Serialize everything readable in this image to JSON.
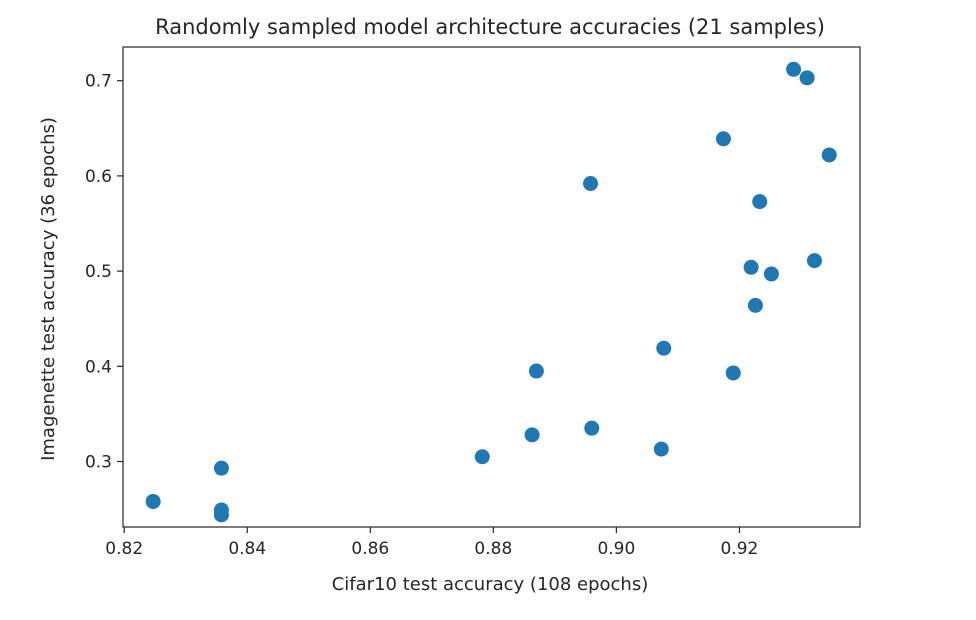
{
  "chart_data": {
    "type": "scatter",
    "title": "Randomly sampled model architecture accuracies (21 samples)",
    "xlabel": "Cifar10 test accuracy (108 epochs)",
    "ylabel": "Imagenette test accuracy (36 epochs)",
    "xlim": [
      0.8198,
      0.9396
    ],
    "ylim": [
      0.2312,
      0.7354
    ],
    "xticks": [
      0.82,
      0.84,
      0.86,
      0.88,
      0.9,
      0.92
    ],
    "xtick_labels": [
      "0.82",
      "0.84",
      "0.86",
      "0.88",
      "0.90",
      "0.92"
    ],
    "yticks": [
      0.3,
      0.4,
      0.5,
      0.6,
      0.7
    ],
    "ytick_labels": [
      "0.3",
      "0.4",
      "0.5",
      "0.6",
      "0.7"
    ],
    "grid": false,
    "marker_color": "#1f77b4",
    "points": [
      {
        "x": 0.8247,
        "y": 0.258
      },
      {
        "x": 0.8358,
        "y": 0.293
      },
      {
        "x": 0.8358,
        "y": 0.249
      },
      {
        "x": 0.8358,
        "y": 0.244
      },
      {
        "x": 0.8782,
        "y": 0.305
      },
      {
        "x": 0.8863,
        "y": 0.328
      },
      {
        "x": 0.887,
        "y": 0.395
      },
      {
        "x": 0.8958,
        "y": 0.592
      },
      {
        "x": 0.896,
        "y": 0.335
      },
      {
        "x": 0.9073,
        "y": 0.313
      },
      {
        "x": 0.9077,
        "y": 0.419
      },
      {
        "x": 0.9174,
        "y": 0.639
      },
      {
        "x": 0.919,
        "y": 0.393
      },
      {
        "x": 0.9219,
        "y": 0.504
      },
      {
        "x": 0.9226,
        "y": 0.464
      },
      {
        "x": 0.9233,
        "y": 0.573
      },
      {
        "x": 0.9252,
        "y": 0.497
      },
      {
        "x": 0.9288,
        "y": 0.712
      },
      {
        "x": 0.931,
        "y": 0.703
      },
      {
        "x": 0.9322,
        "y": 0.511
      },
      {
        "x": 0.9346,
        "y": 0.622
      }
    ]
  }
}
